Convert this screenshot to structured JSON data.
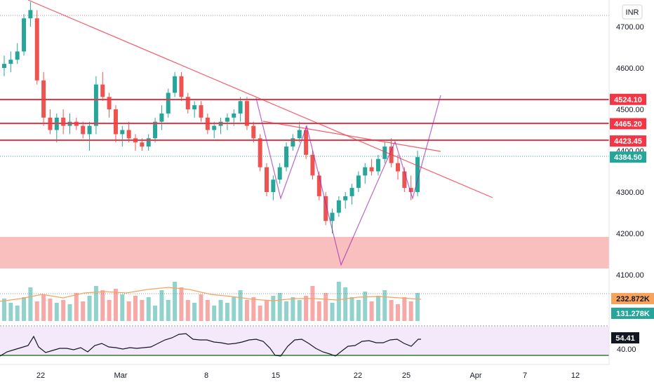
{
  "currency_badge": "INR",
  "price_axis": {
    "ticks": [
      "4700.00",
      "4600.00",
      "4500.00",
      "4400.00",
      "4300.00",
      "4200.00",
      "4100.00"
    ],
    "tick_values": [
      4700,
      4600,
      4500,
      4400,
      4300,
      4200,
      4100
    ]
  },
  "price_tags": [
    {
      "value": 4524.1,
      "label": "4524.10",
      "color": "#f23645"
    },
    {
      "value": 4465.2,
      "label": "4465.20",
      "color": "#f23645"
    },
    {
      "value": 4423.45,
      "label": "4423.45",
      "color": "#f23645"
    },
    {
      "value": 4384.5,
      "label": "4384.50",
      "color": "#26a69a"
    }
  ],
  "time_axis": {
    "labels": [
      "22",
      "Mar",
      "8",
      "15",
      "22",
      "25",
      "Apr",
      "7",
      "12"
    ],
    "label_bars": [
      3,
      11,
      20,
      28,
      38,
      43,
      49,
      54,
      59
    ]
  },
  "volume": {
    "ma_label": "232.872K",
    "last_label": "131.278K",
    "ma_color": "#f7a35c"
  },
  "rsi": {
    "value_label": "54.41",
    "level_label": "40.00",
    "level_value": 40,
    "value": 54.41
  },
  "colors": {
    "up": "#26a69a",
    "down": "#ef5350",
    "trendline": "#f23645",
    "pattern": "#9c27b0",
    "zone": "#f8b4b4",
    "rsi_band": "#f3e9fb",
    "rsi_level": "#2e7d32"
  },
  "chart_data": {
    "type": "candlestick",
    "price_range": [
      4050,
      4770
    ],
    "ohlc": [
      [
        4600,
        4630,
        4580,
        4610
      ],
      [
        4610,
        4640,
        4590,
        4620
      ],
      [
        4620,
        4660,
        4610,
        4640
      ],
      [
        4640,
        4730,
        4630,
        4720
      ],
      [
        4720,
        4760,
        4700,
        4740
      ],
      [
        4720,
        4740,
        4560,
        4570
      ],
      [
        4570,
        4590,
        4460,
        4480
      ],
      [
        4480,
        4500,
        4440,
        4450
      ],
      [
        4450,
        4490,
        4420,
        4480
      ],
      [
        4480,
        4500,
        4440,
        4460
      ],
      [
        4460,
        4490,
        4440,
        4470
      ],
      [
        4470,
        4480,
        4450,
        4460
      ],
      [
        4460,
        4470,
        4430,
        4440
      ],
      [
        4440,
        4470,
        4400,
        4460
      ],
      [
        4460,
        4580,
        4440,
        4560
      ],
      [
        4560,
        4590,
        4520,
        4530
      ],
      [
        4530,
        4540,
        4480,
        4500
      ],
      [
        4500,
        4510,
        4420,
        4440
      ],
      [
        4440,
        4460,
        4410,
        4450
      ],
      [
        4450,
        4470,
        4420,
        4430
      ],
      [
        4430,
        4440,
        4400,
        4420
      ],
      [
        4420,
        4430,
        4400,
        4410
      ],
      [
        4410,
        4440,
        4400,
        4430
      ],
      [
        4430,
        4480,
        4420,
        4470
      ],
      [
        4470,
        4510,
        4450,
        4490
      ],
      [
        4490,
        4550,
        4480,
        4540
      ],
      [
        4540,
        4590,
        4530,
        4580
      ],
      [
        4580,
        4590,
        4520,
        4530
      ],
      [
        4530,
        4540,
        4490,
        4500
      ],
      [
        4500,
        4520,
        4480,
        4510
      ],
      [
        4510,
        4520,
        4470,
        4480
      ],
      [
        4480,
        4490,
        4440,
        4450
      ],
      [
        4450,
        4470,
        4430,
        4460
      ],
      [
        4460,
        4480,
        4440,
        4470
      ],
      [
        4470,
        4490,
        4450,
        4480
      ],
      [
        4480,
        4500,
        4460,
        4490
      ],
      [
        4490,
        4530,
        4470,
        4520
      ],
      [
        4520,
        4530,
        4450,
        4460
      ],
      [
        4460,
        4470,
        4420,
        4430
      ],
      [
        4430,
        4440,
        4350,
        4360
      ],
      [
        4360,
        4370,
        4290,
        4300
      ],
      [
        4300,
        4340,
        4280,
        4330
      ],
      [
        4330,
        4370,
        4320,
        4360
      ],
      [
        4360,
        4420,
        4350,
        4410
      ],
      [
        4410,
        4440,
        4400,
        4430
      ],
      [
        4430,
        4470,
        4420,
        4450
      ],
      [
        4450,
        4460,
        4380,
        4390
      ],
      [
        4390,
        4400,
        4330,
        4340
      ],
      [
        4340,
        4350,
        4280,
        4290
      ],
      [
        4290,
        4300,
        4220,
        4230
      ],
      [
        4230,
        4260,
        4200,
        4250
      ],
      [
        4250,
        4290,
        4240,
        4280
      ],
      [
        4280,
        4300,
        4260,
        4290
      ],
      [
        4290,
        4320,
        4270,
        4310
      ],
      [
        4310,
        4350,
        4300,
        4340
      ],
      [
        4340,
        4370,
        4320,
        4360
      ],
      [
        4360,
        4380,
        4340,
        4350
      ],
      [
        4350,
        4390,
        4340,
        4380
      ],
      [
        4380,
        4420,
        4370,
        4410
      ],
      [
        4410,
        4430,
        4360,
        4370
      ],
      [
        4370,
        4390,
        4330,
        4350
      ],
      [
        4350,
        4360,
        4300,
        4310
      ],
      [
        4310,
        4340,
        4280,
        4300
      ],
      [
        4300,
        4400,
        4290,
        4384.5
      ]
    ],
    "volume_ma_label": "232.872K",
    "rsi_last": 54.41
  }
}
